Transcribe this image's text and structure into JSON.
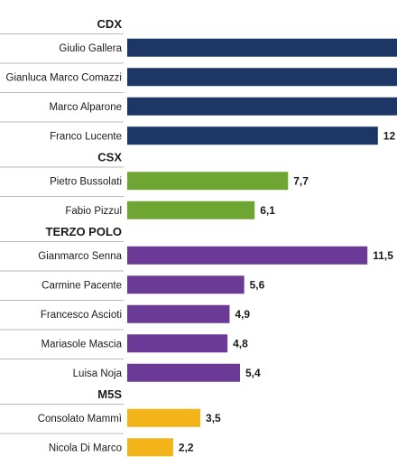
{
  "chart_data": {
    "type": "bar",
    "orientation": "horizontal",
    "groups": [
      {
        "name": "CDX",
        "color": "#1c3766",
        "items": [
          {
            "label": "Giulio Gallera",
            "value": null
          },
          {
            "label": "Gianluca Marco Comazzi",
            "value": null
          },
          {
            "label": "Marco Alparone",
            "value": null
          },
          {
            "label": "Franco Lucente",
            "value": 12,
            "value_label": "12"
          }
        ]
      },
      {
        "name": "CSX",
        "color": "#6fa532",
        "items": [
          {
            "label": "Pietro Bussolati",
            "value": 7.7,
            "value_label": "7,7"
          },
          {
            "label": "Fabio Pizzul",
            "value": 6.1,
            "value_label": "6,1"
          }
        ]
      },
      {
        "name": "TERZO POLO",
        "color": "#6b3a96",
        "items": [
          {
            "label": "Gianmarco Senna",
            "value": 11.5,
            "value_label": "11,5"
          },
          {
            "label": "Carmine Pacente",
            "value": 5.6,
            "value_label": "5,6"
          },
          {
            "label": "Francesco Ascioti",
            "value": 4.9,
            "value_label": "4,9"
          },
          {
            "label": "Mariasole Mascia",
            "value": 4.8,
            "value_label": "4,8"
          },
          {
            "label": "Luisa Noja",
            "value": 5.4,
            "value_label": "5,4"
          }
        ]
      },
      {
        "name": "M5S",
        "color": "#f2b418",
        "items": [
          {
            "label": "Consolato Mammì",
            "value": 3.5,
            "value_label": "3,5"
          },
          {
            "label": "Nicola Di Marco",
            "value": 2.2,
            "value_label": "2,2"
          }
        ]
      }
    ],
    "truncated_bars": [
      "Giulio Gallera",
      "Gianluca Marco Comazzi",
      "Marco Alparone"
    ]
  }
}
